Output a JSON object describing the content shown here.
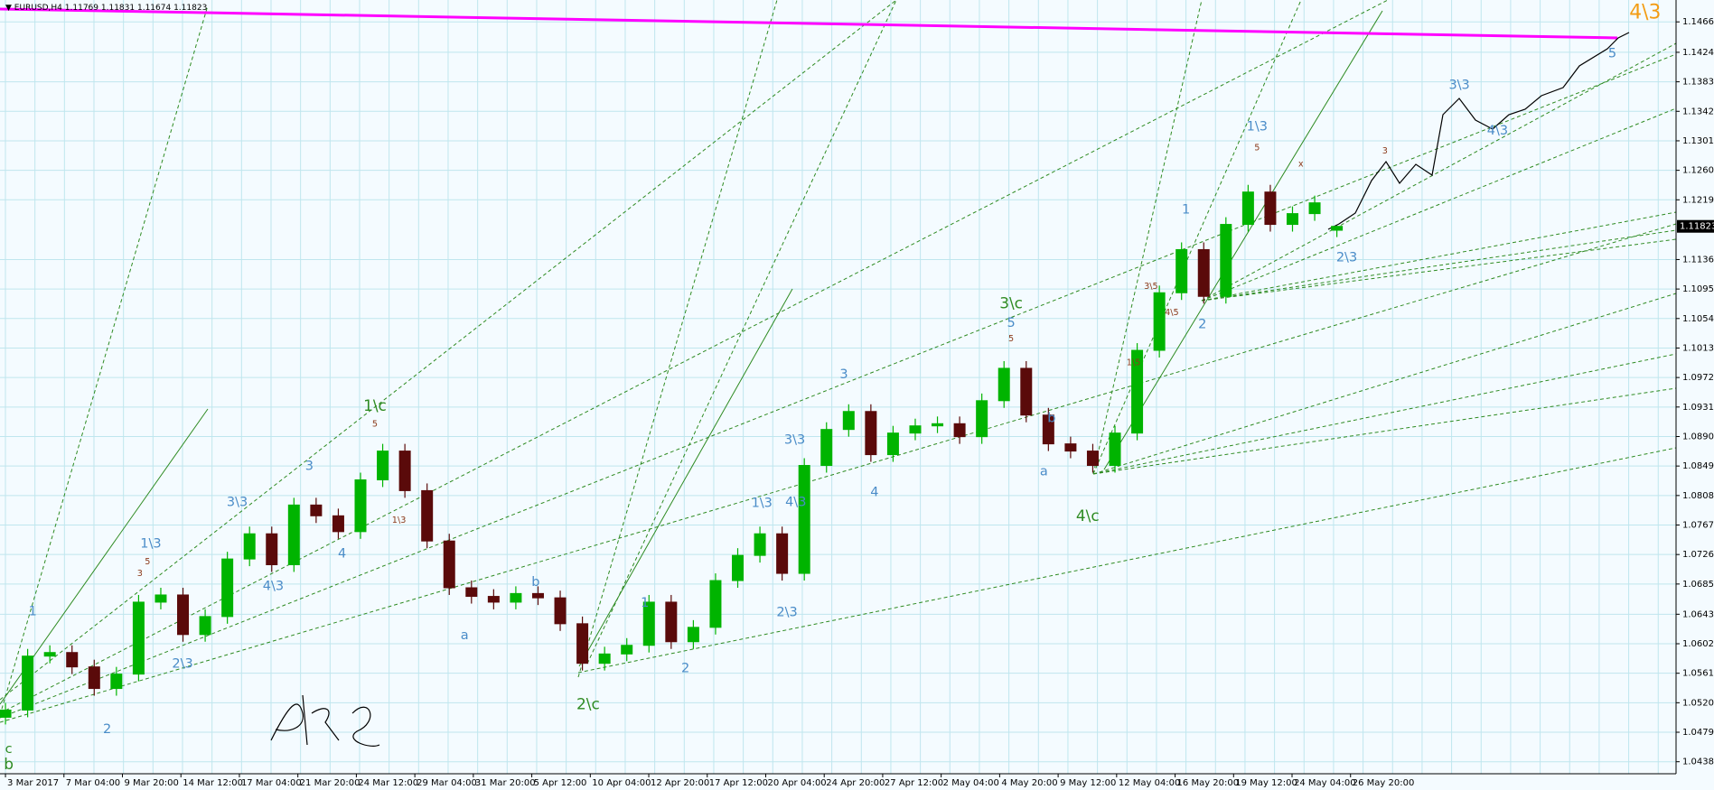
{
  "chart_data": {
    "type": "candlestick",
    "symbol": "EURUSD,H4",
    "bull_color": "#00b400",
    "bear_color": "#5a0a0a",
    "ylim": [
      1.04215,
      1.14969
    ],
    "yticks": [
      1.14665,
      1.14242,
      1.13832,
      1.13422,
      1.13012,
      1.12602,
      1.12192,
      1.11362,
      1.10952,
      1.10542,
      1.10132,
      1.09722,
      1.09312,
      1.08902,
      1.08492,
      1.08082,
      1.07672,
      1.07262,
      1.06852,
      1.06432,
      1.06022,
      1.05612,
      1.05202,
      1.04792,
      1.04382
    ],
    "grid": true,
    "current_price": 1.11823,
    "x_labels": [
      "3 Mar 2017",
      "7 Mar 04:00",
      "9 Mar 20:00",
      "14 Mar 12:00",
      "17 Mar 04:00",
      "21 Mar 20:00",
      "24 Mar 12:00",
      "29 Mar 04:00",
      "31 Mar 20:00",
      "5 Apr 12:00",
      "10 Apr 04:00",
      "12 Apr 20:00",
      "17 Apr 12:00",
      "20 Apr 04:00",
      "24 Apr 20:00",
      "27 Apr 12:00",
      "2 May 04:00",
      "4 May 20:00",
      "9 May 12:00",
      "12 May 04:00",
      "16 May 20:00",
      "19 May 12:00",
      "24 May 04:00",
      "26 May 20:00"
    ],
    "open": [
      1.05,
      1.051,
      1.0585,
      1.059,
      1.057,
      1.054,
      1.056,
      1.066,
      1.067,
      1.0615,
      1.064,
      1.072,
      1.0755,
      1.0712,
      1.0795,
      1.078,
      1.0758,
      1.083,
      1.087,
      1.0815,
      1.0745,
      1.068,
      1.0668,
      1.066,
      1.0672,
      1.0666,
      1.063,
      1.0575,
      1.0588,
      1.06,
      1.066,
      1.0605,
      1.0625,
      1.069,
      1.0725,
      1.0755,
      1.07,
      1.085,
      1.09,
      1.0925,
      1.0865,
      1.0895,
      1.0905,
      1.0908,
      1.089,
      1.094,
      1.0985,
      1.092,
      1.088,
      1.087,
      1.085,
      1.0895,
      1.101,
      1.109,
      1.115,
      1.1085,
      1.1185,
      1.123,
      1.1185,
      1.12,
      1.11769
    ],
    "high": [
      1.052,
      1.0595,
      1.06,
      1.06,
      1.058,
      1.057,
      1.067,
      1.068,
      1.068,
      1.065,
      1.073,
      1.0765,
      1.0765,
      1.0805,
      1.0805,
      1.079,
      1.084,
      1.088,
      1.088,
      1.0825,
      1.0755,
      1.069,
      1.0678,
      1.0682,
      1.0682,
      1.0676,
      1.064,
      1.0598,
      1.061,
      1.067,
      1.067,
      1.0635,
      1.07,
      1.0735,
      1.0765,
      1.0765,
      1.086,
      1.091,
      1.0935,
      1.0935,
      1.0905,
      1.0915,
      1.0918,
      1.0918,
      1.095,
      1.0995,
      1.0995,
      1.093,
      1.089,
      1.088,
      1.0905,
      1.102,
      1.11,
      1.116,
      1.116,
      1.1195,
      1.124,
      1.124,
      1.121,
      1.1225,
      1.11831
    ],
    "low": [
      1.049,
      1.05,
      1.0575,
      1.056,
      1.053,
      1.053,
      1.055,
      1.065,
      1.0605,
      1.0605,
      1.063,
      1.071,
      1.0702,
      1.0702,
      1.077,
      1.0748,
      1.0748,
      1.082,
      1.0805,
      1.0735,
      1.067,
      1.0658,
      1.065,
      1.065,
      1.0656,
      1.062,
      1.0565,
      1.0565,
      1.0578,
      1.059,
      1.0595,
      1.0595,
      1.0615,
      1.068,
      1.0715,
      1.069,
      1.069,
      1.084,
      1.089,
      1.0855,
      1.0855,
      1.0885,
      1.0895,
      1.088,
      1.088,
      1.093,
      1.091,
      1.087,
      1.086,
      1.084,
      1.084,
      1.0885,
      1.1,
      1.108,
      1.1075,
      1.1075,
      1.1175,
      1.1175,
      1.1175,
      1.119,
      1.11674
    ],
    "close": [
      1.051,
      1.0585,
      1.059,
      1.057,
      1.054,
      1.056,
      1.066,
      1.067,
      1.0615,
      1.064,
      1.072,
      1.0755,
      1.0712,
      1.0795,
      1.078,
      1.0758,
      1.083,
      1.087,
      1.0815,
      1.0745,
      1.068,
      1.0668,
      1.066,
      1.0672,
      1.0666,
      1.063,
      1.0575,
      1.0588,
      1.06,
      1.066,
      1.0605,
      1.0625,
      1.069,
      1.0725,
      1.0755,
      1.07,
      1.085,
      1.09,
      1.0925,
      1.0865,
      1.0895,
      1.0905,
      1.0908,
      1.089,
      1.094,
      1.0985,
      1.092,
      1.088,
      1.087,
      1.085,
      1.0895,
      1.101,
      1.109,
      1.115,
      1.1085,
      1.1185,
      1.123,
      1.1185,
      1.12,
      1.1215,
      1.11823
    ],
    "annotations": [
      {
        "text": "1\\c",
        "color": "#2e8b22"
      },
      {
        "text": "2\\c",
        "color": "#2e8b22"
      },
      {
        "text": "3\\c",
        "color": "#2e8b22"
      },
      {
        "text": "4\\c",
        "color": "#2e8b22"
      },
      {
        "text": "b",
        "color": "#2e8b22"
      },
      {
        "text": "c",
        "color": "#2e8b22"
      },
      {
        "text": "4\\3",
        "color": "#f39c12"
      },
      {
        "text": "1",
        "color": "#4a8cc8"
      },
      {
        "text": "2",
        "color": "#4a8cc8"
      },
      {
        "text": "1\\3",
        "color": "#4a8cc8"
      },
      {
        "text": "2\\3",
        "color": "#4a8cc8"
      },
      {
        "text": "3\\3",
        "color": "#4a8cc8"
      },
      {
        "text": "4\\3",
        "color": "#4a8cc8"
      },
      {
        "text": "3",
        "color": "#4a8cc8"
      },
      {
        "text": "4",
        "color": "#4a8cc8"
      },
      {
        "text": "a",
        "color": "#4a8cc8"
      },
      {
        "text": "b",
        "color": "#4a8cc8"
      },
      {
        "text": "1",
        "color": "#4a8cc8"
      },
      {
        "text": "2",
        "color": "#4a8cc8"
      },
      {
        "text": "1\\3",
        "color": "#4a8cc8"
      },
      {
        "text": "4\\3",
        "color": "#4a8cc8"
      },
      {
        "text": "3\\3",
        "color": "#4a8cc8"
      },
      {
        "text": "2\\3",
        "color": "#4a8cc8"
      },
      {
        "text": "3",
        "color": "#4a8cc8"
      },
      {
        "text": "4",
        "color": "#4a8cc8"
      },
      {
        "text": "5",
        "color": "#4a8cc8"
      },
      {
        "text": "a",
        "color": "#4a8cc8"
      },
      {
        "text": "b",
        "color": "#4a8cc8"
      },
      {
        "text": "1",
        "color": "#4a8cc8"
      },
      {
        "text": "2",
        "color": "#4a8cc8"
      },
      {
        "text": "1\\3",
        "color": "#4a8cc8"
      },
      {
        "text": "2\\3",
        "color": "#4a8cc8"
      },
      {
        "text": "3\\3",
        "color": "#4a8cc8"
      },
      {
        "text": "4\\3",
        "color": "#4a8cc8"
      },
      {
        "text": "5",
        "color": "#4a8cc8"
      },
      {
        "text": "5",
        "color": "#8b3a1a"
      },
      {
        "text": "3",
        "color": "#8b3a1a"
      },
      {
        "text": "5",
        "color": "#8b3a1a"
      },
      {
        "text": "1\\3",
        "color": "#8b3a1a"
      },
      {
        "text": "3\\5",
        "color": "#8b3a1a"
      },
      {
        "text": "4\\5",
        "color": "#8b3a1a"
      },
      {
        "text": "1\\5",
        "color": "#8b3a1a"
      },
      {
        "text": "x",
        "color": "#8b3a1a"
      },
      {
        "text": "5",
        "color": "#8b3a1a"
      },
      {
        "text": "5",
        "color": "#8b3a1a"
      },
      {
        "text": "3",
        "color": "#8b3a1a"
      }
    ]
  }
}
